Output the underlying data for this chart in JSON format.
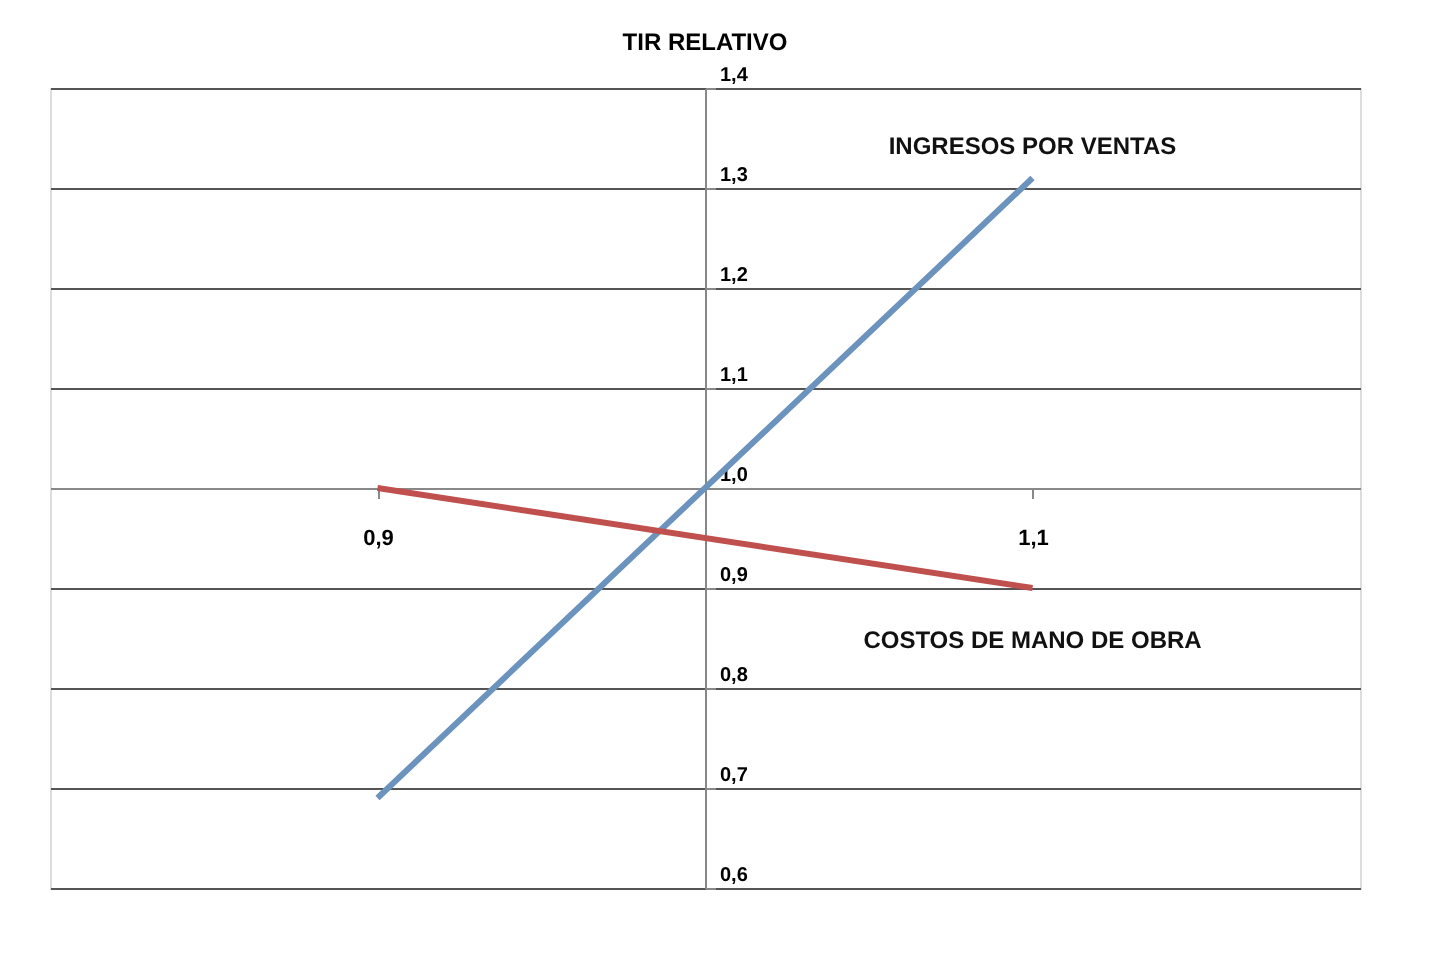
{
  "chart_data": {
    "type": "line",
    "title": "TIR RELATIVO",
    "xlim": [
      0.8,
      1.2
    ],
    "xticks": [
      {
        "value": 0.9,
        "label": "0,9"
      },
      {
        "value": 1.1,
        "label": "1,1"
      }
    ],
    "ylim": [
      0.6,
      1.4
    ],
    "yticks": [
      {
        "value": 0.6,
        "label": "0,6"
      },
      {
        "value": 0.7,
        "label": "0,7"
      },
      {
        "value": 0.8,
        "label": "0,8"
      },
      {
        "value": 0.9,
        "label": "0,9"
      },
      {
        "value": 1.0,
        "label": "1,0"
      },
      {
        "value": 1.1,
        "label": "1,1"
      },
      {
        "value": 1.2,
        "label": "1,2"
      },
      {
        "value": 1.3,
        "label": "1,3"
      },
      {
        "value": 1.4,
        "label": "1,4"
      }
    ],
    "grid": "y",
    "marker": "none",
    "line_style": "solid",
    "x": [
      0.9,
      1.1
    ],
    "series": [
      {
        "name": "INGRESOS POR VENTAS",
        "color": "#6b93bd",
        "values": [
          0.69,
          1.31
        ]
      },
      {
        "name": "COSTOS DE MANO DE OBRA",
        "color": "#c0504d",
        "values": [
          1.0,
          0.9
        ]
      }
    ]
  }
}
